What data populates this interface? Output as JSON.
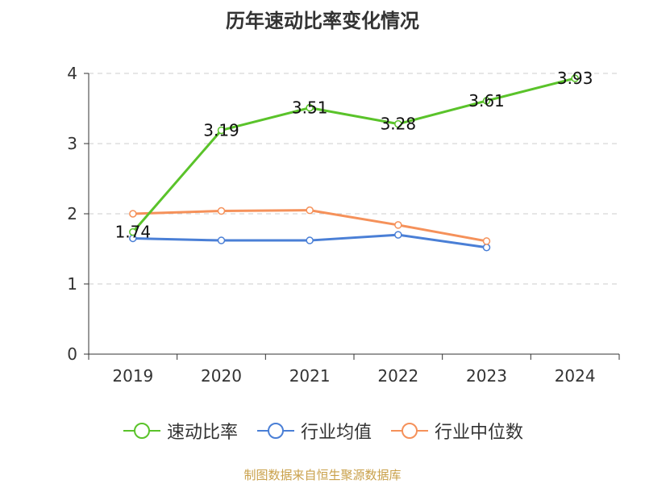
{
  "title": "历年速动比率变化情况",
  "source": "制图数据来自恒生聚源数据库",
  "chart_data": {
    "type": "line",
    "categories": [
      "2019",
      "2020",
      "2021",
      "2022",
      "2023",
      "2024"
    ],
    "ylim": [
      0,
      4
    ],
    "yticks": [
      0,
      1,
      2,
      3,
      4
    ],
    "grid": true,
    "legend_position": "bottom",
    "series": [
      {
        "name": "速动比率",
        "color": "#5ac32a",
        "values": [
          1.74,
          3.19,
          3.51,
          3.28,
          3.61,
          3.93
        ],
        "labels": [
          "1.74",
          "3.19",
          "3.51",
          "3.28",
          "3.61",
          "3.93"
        ]
      },
      {
        "name": "行业均值",
        "color": "#4a7fd6",
        "values": [
          1.65,
          1.62,
          1.62,
          1.7,
          1.52,
          null
        ]
      },
      {
        "name": "行业中位数",
        "color": "#f5915a",
        "values": [
          2.0,
          2.04,
          2.05,
          1.84,
          1.61,
          null
        ]
      }
    ]
  }
}
